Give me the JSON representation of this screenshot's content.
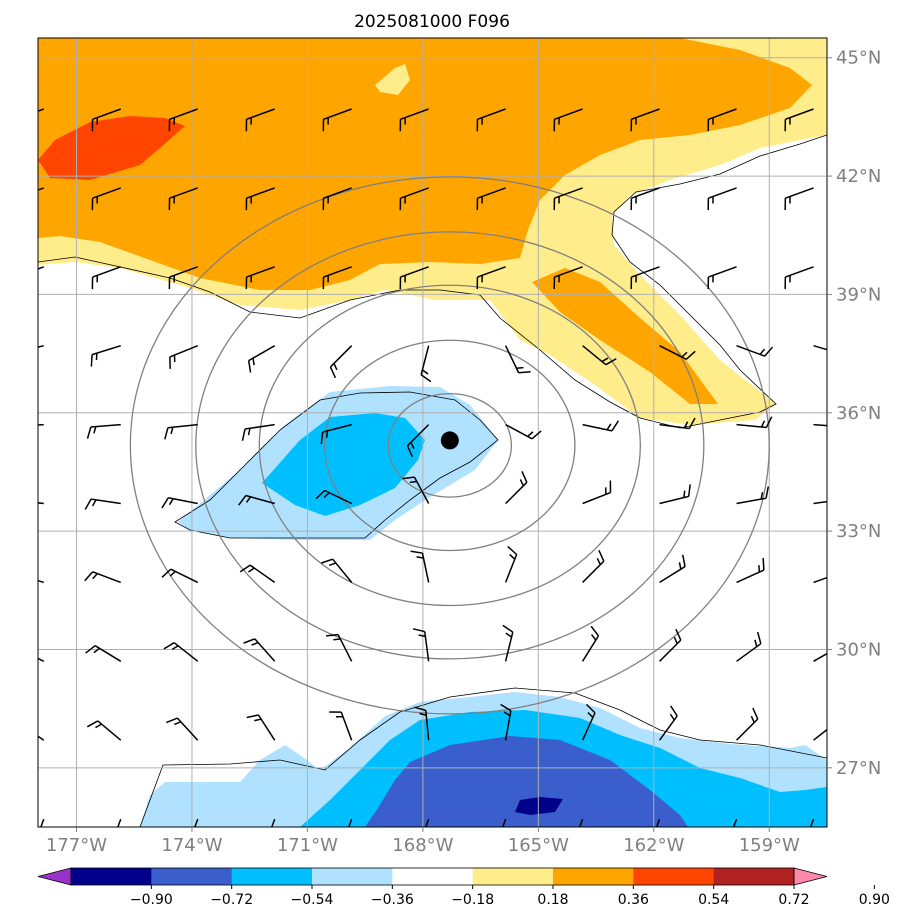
{
  "chart_data": {
    "type": "heatmap",
    "title": "2025081000 F096",
    "xlabel": "",
    "ylabel": "",
    "projection": "map",
    "lon_range": [
      -178.0,
      -157.5
    ],
    "lat_range": [
      25.5,
      45.5
    ],
    "x_ticks": [
      "177°W",
      "174°W",
      "171°W",
      "168°W",
      "165°W",
      "162°W",
      "159°W"
    ],
    "x_tick_values": [
      -177,
      -174,
      -171,
      -168,
      -165,
      -162,
      -159
    ],
    "y_ticks": [
      "27°N",
      "30°N",
      "33°N",
      "36°N",
      "39°N",
      "42°N",
      "45°N"
    ],
    "y_tick_values": [
      27,
      30,
      33,
      36,
      39,
      42,
      45
    ],
    "grid": true,
    "colorbar": {
      "orientation": "horizontal",
      "placement": "bottom",
      "extend": "both",
      "tick_labels": [
        "−0.90",
        "−0.72",
        "−0.54",
        "−0.36",
        "−0.18",
        "0.18",
        "0.36",
        "0.54",
        "0.72",
        "0.90"
      ],
      "boundaries": [
        -0.9,
        -0.72,
        -0.54,
        -0.36,
        -0.18,
        0.18,
        0.36,
        0.54,
        0.72,
        0.9
      ],
      "colors": [
        "#9932CC",
        "#00008B",
        "#3A5FCD",
        "#00BFFF",
        "#B0E2FF",
        "#FFFFFF",
        "#FFEC8B",
        "#FFA500",
        "#FF4500",
        "#B22222",
        "#FF88AA"
      ]
    },
    "marker": {
      "lon": -167.3,
      "lat": 35.3,
      "color": "#000000"
    },
    "range_rings": {
      "center_lon": -167.3,
      "center_lat": 35.3,
      "count": 5,
      "color": "#808080"
    }
  }
}
